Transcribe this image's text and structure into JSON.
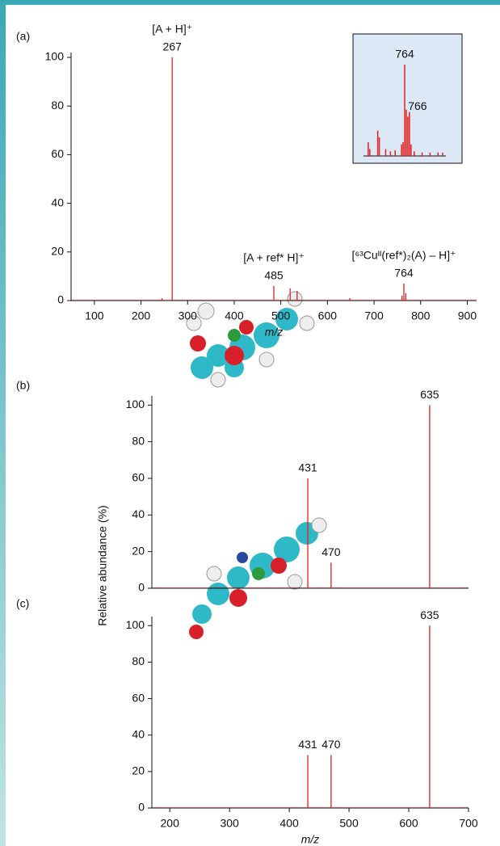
{
  "chart_data": [
    {
      "type": "stem",
      "panel_label": "(a)",
      "xlabel": "m/z",
      "color": "#e0201f",
      "x": [
        245,
        267,
        485,
        520,
        535,
        648,
        760,
        764,
        768
      ],
      "values": [
        1,
        100,
        6,
        5,
        4,
        1,
        2,
        7,
        3
      ],
      "xlim": [
        50,
        920
      ],
      "ylim": [
        0,
        102
      ],
      "xticks": [
        100,
        200,
        300,
        400,
        500,
        600,
        700,
        800,
        900
      ],
      "yticks": [
        0,
        20,
        40,
        60,
        80,
        100
      ],
      "annotations": [
        {
          "x": 267,
          "label": "267",
          "title": "[A + H]⁺"
        },
        {
          "x": 485,
          "label": "485",
          "title": "[A + ref* H]⁺"
        },
        {
          "x": 764,
          "label": "764",
          "title": "[⁶³Cuᴵᴵ(ref*)₂(A) – H]⁺"
        }
      ],
      "inset": {
        "x": [
          741,
          742,
          747,
          748,
          752,
          755,
          758,
          762,
          763,
          764,
          765,
          766,
          767,
          768,
          770,
          775,
          780,
          785,
          788
        ],
        "values": [
          12,
          6,
          22,
          16,
          6,
          4,
          5,
          10,
          12,
          79,
          40,
          34,
          38,
          10,
          4,
          3,
          3,
          3,
          3
        ],
        "xlim": [
          738,
          790
        ],
        "ylim": [
          0,
          100
        ],
        "annotations": [
          {
            "x": 764,
            "label": "764"
          },
          {
            "x": 766,
            "label": "766"
          }
        ]
      }
    },
    {
      "type": "stem",
      "panel_label": "(b)",
      "ylabel": "Relative abundance (%)",
      "color": "#e0201f",
      "x": [
        431,
        470,
        635
      ],
      "values": [
        60,
        14,
        100
      ],
      "xlim": [
        170,
        700
      ],
      "ylim": [
        0,
        105
      ],
      "yticks": [
        0,
        20,
        40,
        60,
        80,
        100
      ],
      "annotations": [
        {
          "x": 431,
          "label": "431"
        },
        {
          "x": 470,
          "label": "470"
        },
        {
          "x": 635,
          "label": "635"
        }
      ]
    },
    {
      "type": "stem",
      "panel_label": "(c)",
      "xlabel": "m/z",
      "color": "#e0201f",
      "x": [
        431,
        470,
        635
      ],
      "values": [
        29,
        29,
        100
      ],
      "xlim": [
        170,
        700
      ],
      "ylim": [
        0,
        105
      ],
      "xticks": [
        200,
        300,
        400,
        500,
        600,
        700
      ],
      "yticks": [
        0,
        20,
        40,
        60,
        80,
        100
      ],
      "annotations": [
        {
          "x": 431,
          "label": "431"
        },
        {
          "x": 470,
          "label": "470"
        },
        {
          "x": 635,
          "label": "635"
        }
      ]
    }
  ]
}
